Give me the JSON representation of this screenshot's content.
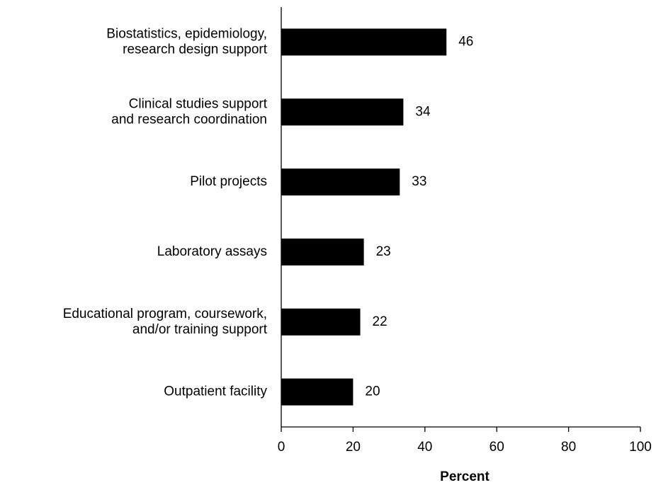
{
  "chart_data": {
    "type": "bar",
    "orientation": "horizontal",
    "categories": [
      [
        "Biostatistics, epidemiology,",
        "research design support"
      ],
      [
        "Clinical studies support",
        "and research coordination"
      ],
      [
        "Pilot projects"
      ],
      [
        "Laboratory assays"
      ],
      [
        "Educational program, coursework,",
        "and/or training support"
      ],
      [
        "Outpatient facility"
      ]
    ],
    "values": [
      46,
      34,
      33,
      23,
      22,
      20
    ],
    "color": "#000000",
    "xlabel": "Percent",
    "xlim": [
      0,
      100
    ],
    "xticks": [
      0,
      20,
      40,
      60,
      80,
      100
    ],
    "grid": false
  }
}
